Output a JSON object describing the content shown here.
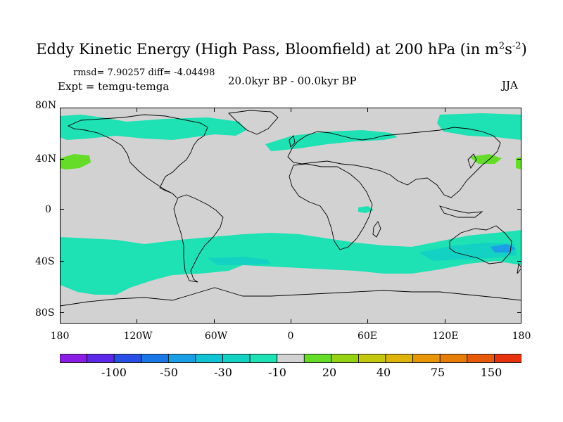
{
  "title": {
    "main": "Eddy Kinetic Energy (High Pass, Bloomfield) at 200 hPa (in m",
    "sup1": "2",
    "mid": "s",
    "sup2": "-2",
    "end": ")"
  },
  "stats": "rmsd= 7.90257 diff= -4.04498",
  "expt": "Expt = temgu-temga",
  "period": "20.0kyr BP - 00.0kyr BP",
  "season": "JJA",
  "lat_labels": [
    "80N",
    "40N",
    "0",
    "40S",
    "80S"
  ],
  "lon_labels": [
    "180",
    "120W",
    "60W",
    "0",
    "60E",
    "120E",
    "180"
  ],
  "colorbar": {
    "colors": [
      "#8a1ee6",
      "#5a28e6",
      "#2850e6",
      "#1a78e6",
      "#1a9ee6",
      "#0fc3d2",
      "#14d2c3",
      "#1ee1b4",
      "#d2d2d2",
      "#64dc28",
      "#96d214",
      "#c3c80f",
      "#dcb40a",
      "#e69608",
      "#e67d08",
      "#e65a0a",
      "#e6320f"
    ],
    "labels": [
      "-100",
      "-50",
      "-30",
      "-10",
      "20",
      "40",
      "75",
      "150"
    ]
  },
  "map_colors": {
    "background": "#d2d2d2",
    "light_band": "#1ee1b4",
    "mid_band": "#14d2c3",
    "green": "#64dc28",
    "blue": "#1a9ee6",
    "coast": "#000000"
  }
}
